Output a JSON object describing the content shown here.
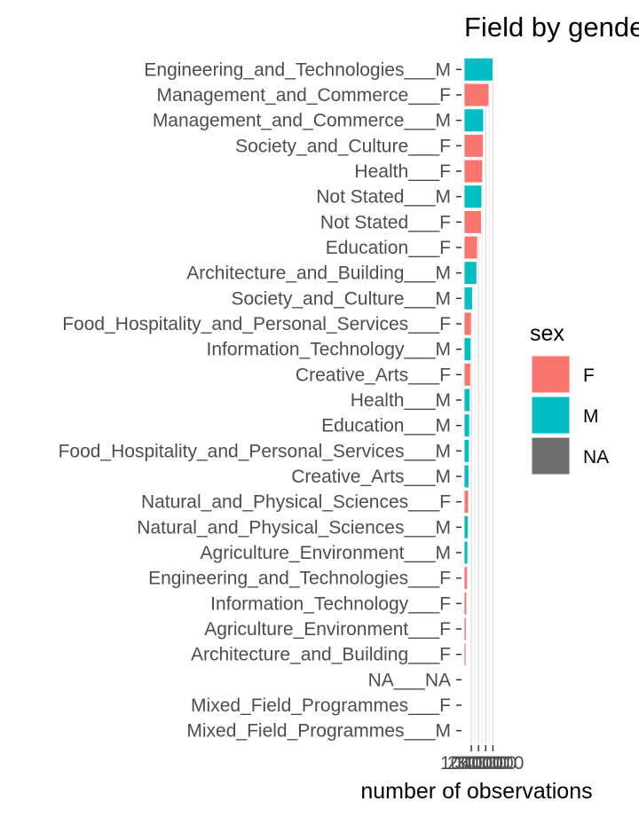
{
  "chart_data": {
    "type": "bar",
    "orientation": "horizontal",
    "title": "Field by gender",
    "xlabel": "number of observations",
    "ylabel": "",
    "x_ticks": [
      "100000",
      "200000",
      "300000",
      "400000"
    ],
    "xlim": [
      0,
      420000
    ],
    "grid": true,
    "legend": {
      "title": "sex",
      "placement": "right",
      "entries": [
        {
          "label": "F",
          "color": "#F8766D"
        },
        {
          "label": "M",
          "color": "#00BFC4"
        },
        {
          "label": "NA",
          "color": "#6E6E6E"
        }
      ]
    },
    "bars": [
      {
        "category": "Engineering_and_Technologies___M",
        "sex": "M",
        "value": 400000
      },
      {
        "category": "Management_and_Commerce___F",
        "sex": "F",
        "value": 345000
      },
      {
        "category": "Management_and_Commerce___M",
        "sex": "M",
        "value": 270000
      },
      {
        "category": "Society_and_Culture___F",
        "sex": "F",
        "value": 265000
      },
      {
        "category": "Health___F",
        "sex": "F",
        "value": 255000
      },
      {
        "category": "Not Stated___M",
        "sex": "M",
        "value": 245000
      },
      {
        "category": "Not Stated___F",
        "sex": "F",
        "value": 240000
      },
      {
        "category": "Education___F",
        "sex": "F",
        "value": 185000
      },
      {
        "category": "Architecture_and_Building___M",
        "sex": "M",
        "value": 175000
      },
      {
        "category": "Society_and_Culture___M",
        "sex": "M",
        "value": 115000
      },
      {
        "category": "Food_Hospitality_and_Personal_Services___F",
        "sex": "F",
        "value": 100000
      },
      {
        "category": "Information_Technology___M",
        "sex": "M",
        "value": 95000
      },
      {
        "category": "Creative_Arts___F",
        "sex": "F",
        "value": 90000
      },
      {
        "category": "Health___M",
        "sex": "M",
        "value": 80000
      },
      {
        "category": "Education___M",
        "sex": "M",
        "value": 75000
      },
      {
        "category": "Food_Hospitality_and_Personal_Services___M",
        "sex": "M",
        "value": 70000
      },
      {
        "category": "Creative_Arts___M",
        "sex": "M",
        "value": 65000
      },
      {
        "category": "Natural_and_Physical_Sciences___F",
        "sex": "F",
        "value": 60000
      },
      {
        "category": "Natural_and_Physical_Sciences___M",
        "sex": "M",
        "value": 55000
      },
      {
        "category": "Agriculture_Environment___M",
        "sex": "M",
        "value": 50000
      },
      {
        "category": "Engineering_and_Technologies___F",
        "sex": "F",
        "value": 45000
      },
      {
        "category": "Information_Technology___F",
        "sex": "F",
        "value": 35000
      },
      {
        "category": "Agriculture_Environment___F",
        "sex": "F",
        "value": 28000
      },
      {
        "category": "Architecture_and_Building___F",
        "sex": "F",
        "value": 25000
      },
      {
        "category": "NA___NA",
        "sex": "NA",
        "value": 1500
      },
      {
        "category": "Mixed_Field_Programmes___F",
        "sex": "F",
        "value": 800
      },
      {
        "category": "Mixed_Field_Programmes___M",
        "sex": "M",
        "value": 500
      }
    ]
  }
}
